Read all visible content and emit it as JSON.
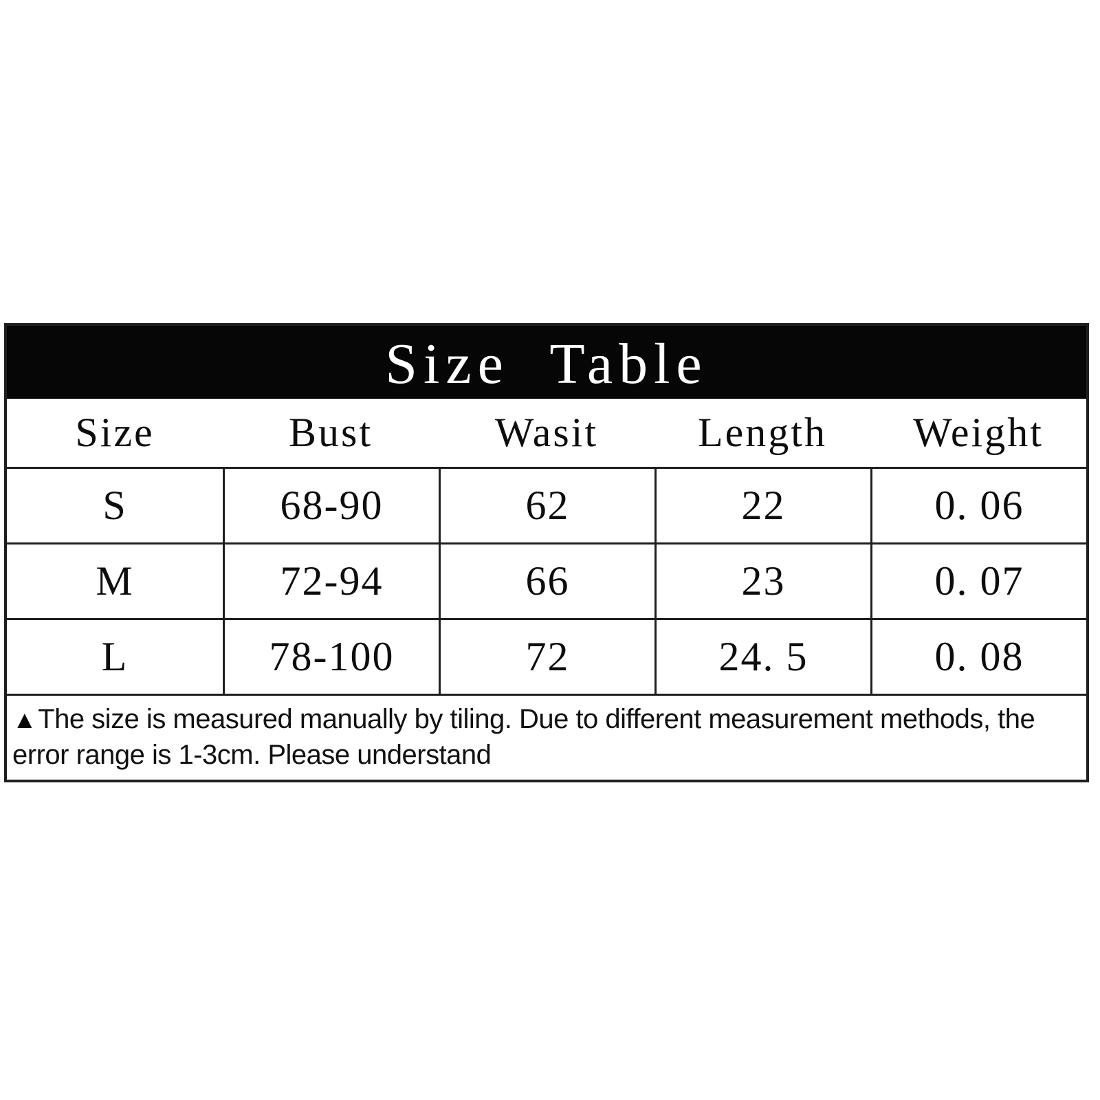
{
  "page": {
    "background_color": "#ffffff"
  },
  "size_table": {
    "title": "Size Table",
    "colors": {
      "title_bg": "#060606",
      "title_text": "#ffffff",
      "border": "#1f1f1f",
      "body_text": "#0d0d0d"
    },
    "columns": [
      "Size",
      "Bust",
      "Wasit",
      "Length",
      "Weight"
    ],
    "rows": [
      [
        "S",
        "68-90",
        "62",
        "22",
        "0. 06"
      ],
      [
        "M",
        "72-94",
        "66",
        "23",
        "0. 07"
      ],
      [
        "L",
        "78-100",
        "72",
        "24. 5",
        "0. 08"
      ]
    ],
    "note": {
      "icon": "▲",
      "text": "The size is measured manually by tiling. Due to different measurement methods, the error range is 1-3cm. Please understand"
    }
  }
}
